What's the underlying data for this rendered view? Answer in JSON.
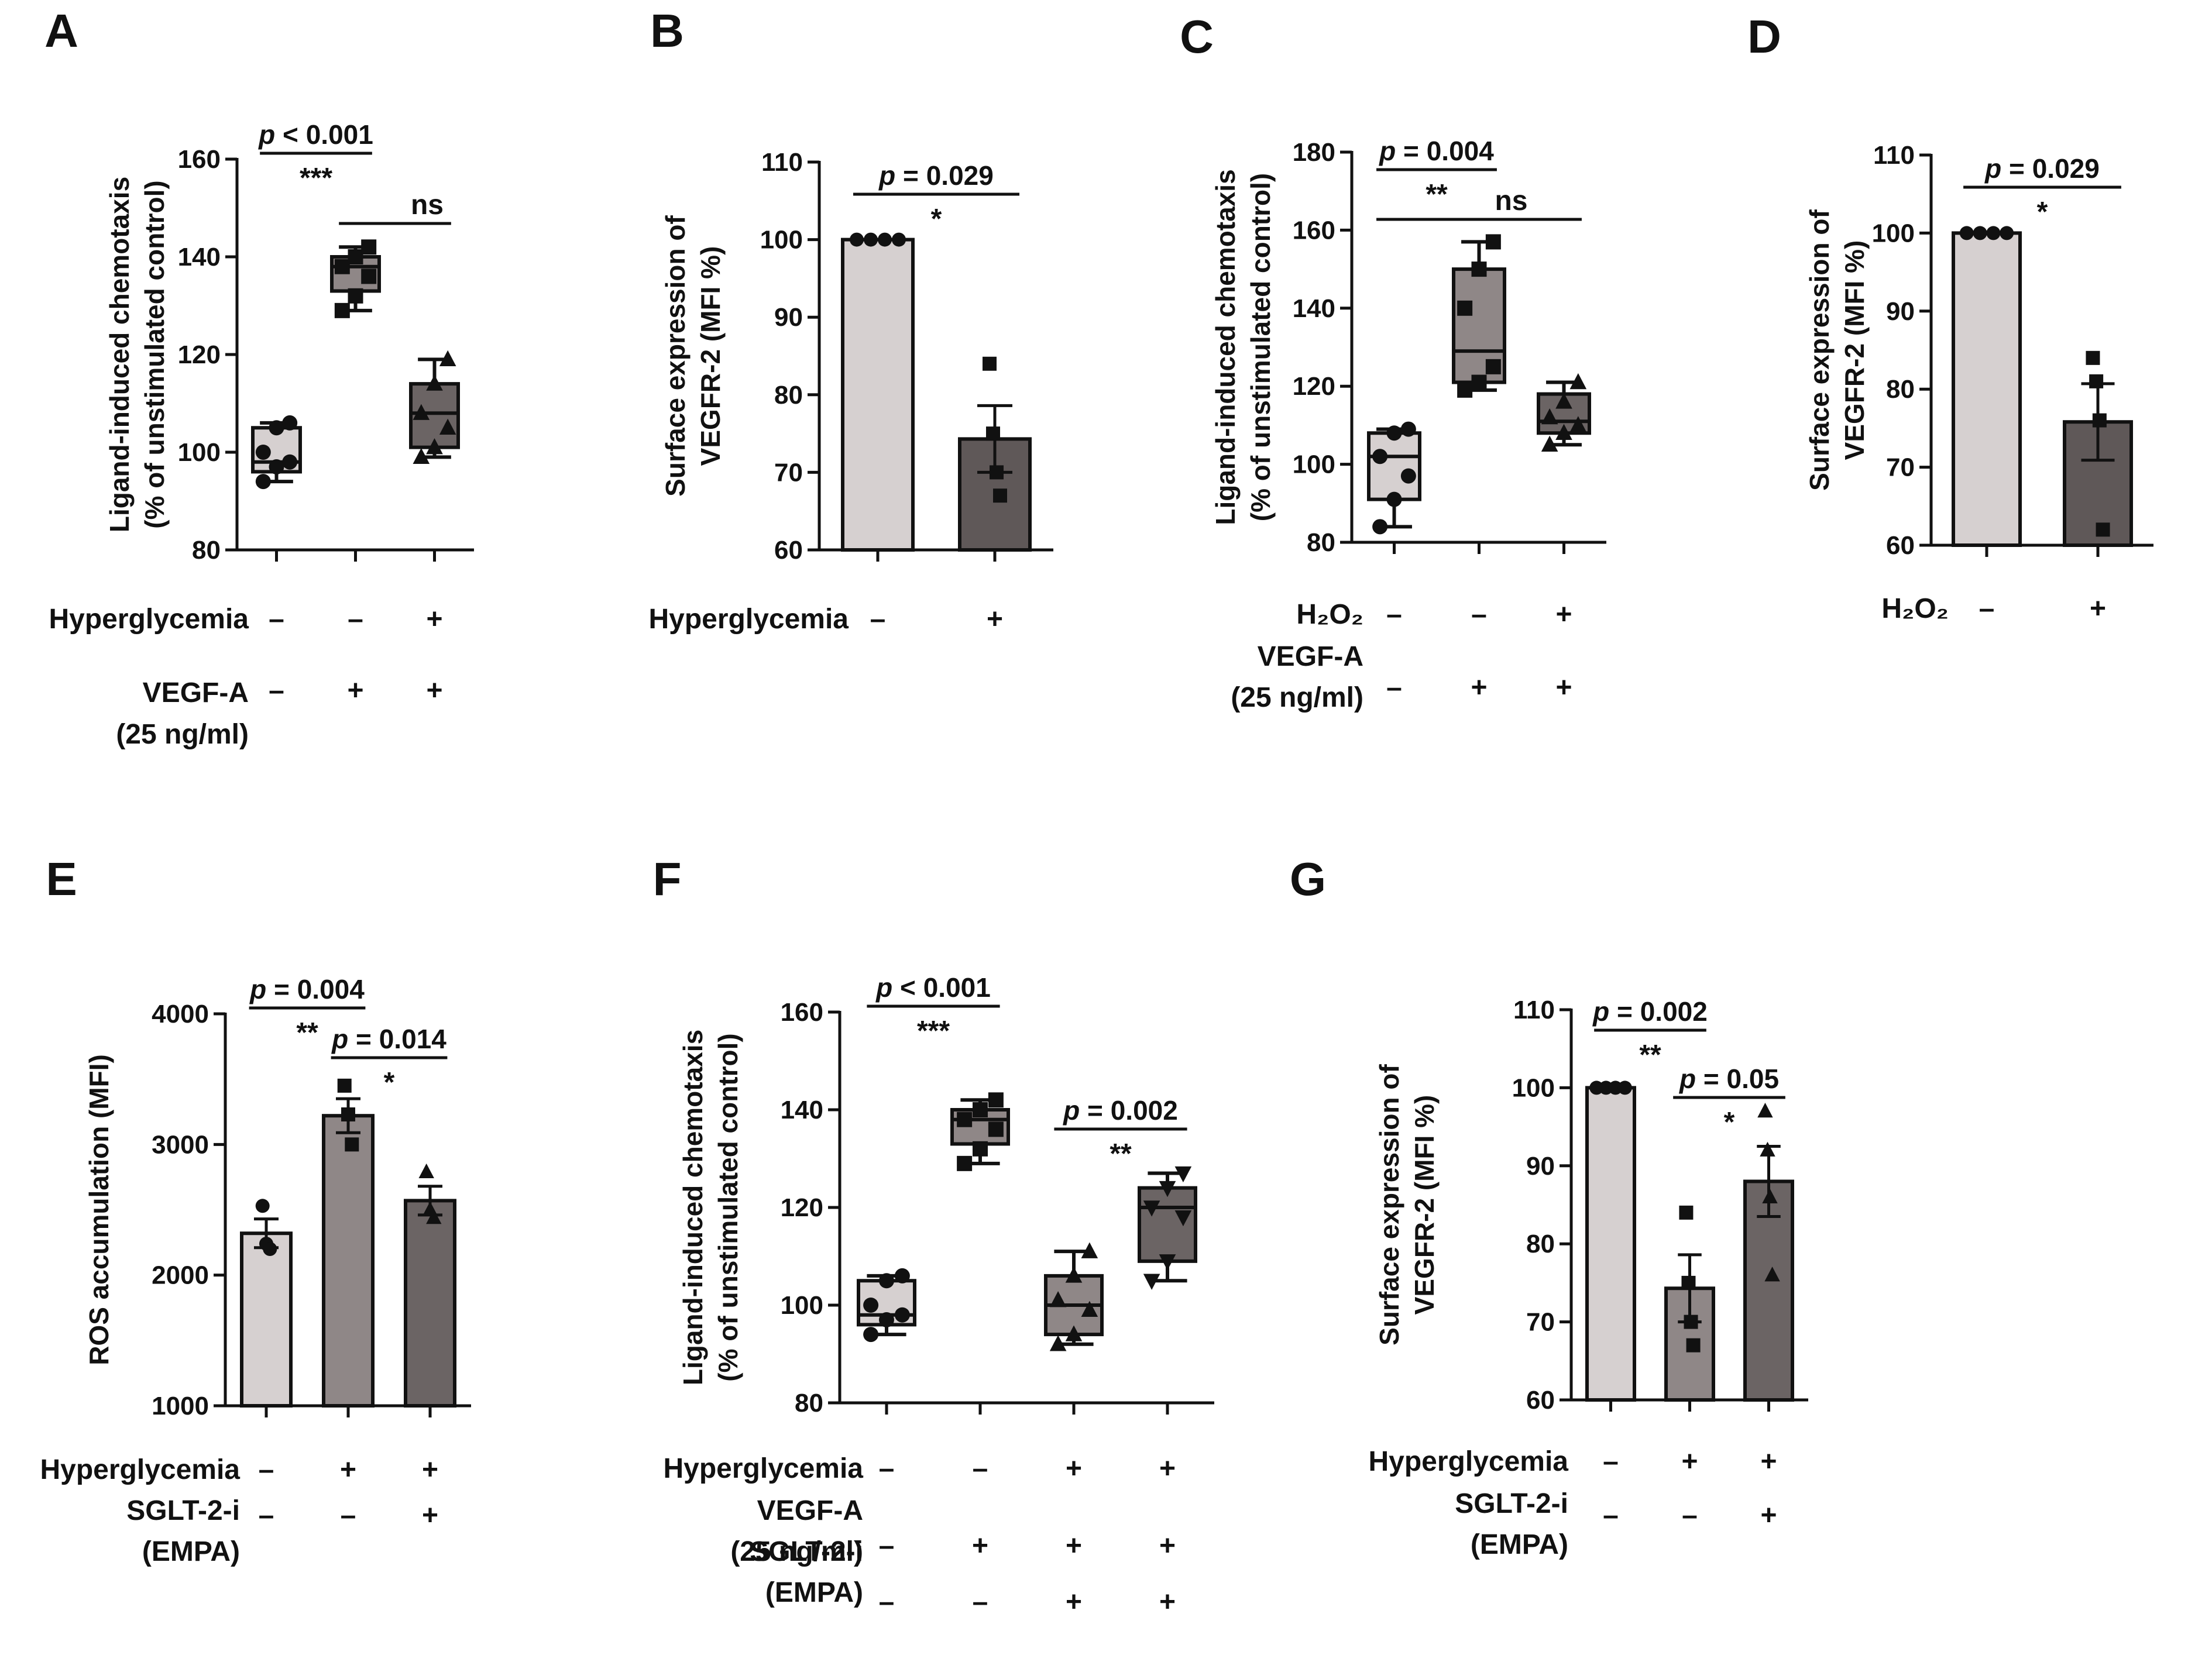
{
  "panels": [
    {
      "label": "A",
      "type": "box",
      "ylabel": [
        "Ligand-induced chemotaxis",
        "(% of unstimulated control)"
      ],
      "yticks": [
        80,
        100,
        120,
        140,
        160
      ],
      "ylim": [
        80,
        160
      ],
      "boxes": [
        {
          "fill": "#d6d0d0",
          "min": 94,
          "q1": 96,
          "median": 98,
          "q3": 105,
          "max": 106,
          "marker": "circle",
          "points": [
            94,
            97,
            98,
            100,
            105,
            106
          ]
        },
        {
          "fill": "#8f8787",
          "min": 129,
          "q1": 133,
          "median": 138,
          "q3": 140,
          "max": 142,
          "marker": "square",
          "points": [
            129,
            132,
            136,
            138,
            140,
            142
          ]
        },
        {
          "fill": "#6b6464",
          "min": 99,
          "q1": 101,
          "median": 108,
          "q3": 114,
          "max": 119,
          "marker": "triangle",
          "points": [
            99,
            101,
            105,
            108,
            114,
            119
          ]
        }
      ],
      "comparisons": [
        {
          "from": 0,
          "to": 1,
          "p": "p < 0.001",
          "stars": "***"
        },
        {
          "from": 1,
          "to": 2,
          "p": "",
          "stars": "ns"
        }
      ],
      "conditions": [
        {
          "label": [
            "Hyperglycemia"
          ],
          "signs": [
            "–",
            "–",
            "+"
          ]
        },
        {
          "label": [
            "VEGF-A",
            "(25 ng/ml)"
          ],
          "signs": [
            "–",
            "+",
            "+"
          ]
        }
      ]
    },
    {
      "label": "B",
      "type": "bar",
      "ylabel": [
        "Surface expression of",
        "VEGFR-2 (MFI %)"
      ],
      "yticks": [
        60,
        70,
        80,
        90,
        100,
        110
      ],
      "ylim": [
        60,
        110
      ],
      "bars": [
        {
          "fill": "#d6d0d0",
          "mean": 100,
          "sem": 0,
          "marker": "circle",
          "points": [
            100,
            100,
            100,
            100
          ]
        },
        {
          "fill": "#5f5858",
          "mean": 74.3,
          "sem": 4.3,
          "marker": "square",
          "points": [
            84,
            75,
            70,
            67
          ]
        }
      ],
      "comparisons": [
        {
          "from": 0,
          "to": 1,
          "p": "p = 0.029",
          "stars": "*"
        }
      ],
      "conditions": [
        {
          "label": [
            "Hyperglycemia"
          ],
          "signs": [
            "–",
            "+"
          ]
        }
      ]
    },
    {
      "label": "C",
      "type": "box",
      "ylabel": [
        "Ligand-induced chemotaxis",
        "(% of unstimulated control)"
      ],
      "yticks": [
        80,
        100,
        120,
        140,
        160,
        180
      ],
      "ylim": [
        80,
        180
      ],
      "boxes": [
        {
          "fill": "#d6d0d0",
          "min": 84,
          "q1": 91,
          "median": 102,
          "q3": 108,
          "max": 109,
          "marker": "circle",
          "points": [
            84,
            91,
            97,
            102,
            108,
            109
          ]
        },
        {
          "fill": "#8f8787",
          "min": 119,
          "q1": 121,
          "median": 129,
          "q3": 150,
          "max": 157,
          "marker": "square",
          "points": [
            119,
            121,
            125,
            140,
            150,
            157
          ]
        },
        {
          "fill": "#6b6464",
          "min": 105,
          "q1": 108,
          "median": 111,
          "q3": 118,
          "max": 121,
          "marker": "triangle",
          "points": [
            105,
            108,
            110,
            112,
            116,
            121
          ]
        }
      ],
      "comparisons": [
        {
          "from": 0,
          "to": 1,
          "p": "p = 0.004",
          "stars": "**"
        },
        {
          "from": 0,
          "to": 2,
          "p": "",
          "stars": "ns"
        }
      ],
      "conditions": [
        {
          "label": [
            "H₂O₂"
          ],
          "signs": [
            "–",
            "–",
            "+"
          ]
        },
        {
          "label": [
            "VEGF-A",
            "(25 ng/ml)"
          ],
          "signs": [
            "–",
            "+",
            "+"
          ]
        }
      ]
    },
    {
      "label": "D",
      "type": "bar",
      "ylabel": [
        "Surface expression of",
        "VEGFR-2 (MFI %)"
      ],
      "yticks": [
        60,
        70,
        80,
        90,
        100,
        110
      ],
      "ylim": [
        60,
        110
      ],
      "bars": [
        {
          "fill": "#d6d0d0",
          "mean": 100,
          "sem": 0,
          "marker": "circle",
          "points": [
            100,
            100,
            100,
            100
          ]
        },
        {
          "fill": "#5f5858",
          "mean": 75.8,
          "sem": 4.9,
          "marker": "square",
          "points": [
            84,
            81,
            76,
            62
          ]
        }
      ],
      "comparisons": [
        {
          "from": 0,
          "to": 1,
          "p": "p = 0.029",
          "stars": "*"
        }
      ],
      "conditions": [
        {
          "label": [
            "H₂O₂"
          ],
          "signs": [
            "–",
            "+"
          ]
        }
      ]
    },
    {
      "label": "E",
      "type": "bar",
      "ylabel": [
        "ROS accumulation (MFI)"
      ],
      "yticks": [
        1000,
        2000,
        3000,
        4000
      ],
      "ylim": [
        1000,
        4000
      ],
      "bars": [
        {
          "fill": "#d6d0d0",
          "mean": 2320,
          "sem": 110,
          "marker": "circle",
          "points": [
            2530,
            2240,
            2200
          ]
        },
        {
          "fill": "#8f8787",
          "mean": 3220,
          "sem": 130,
          "marker": "square",
          "points": [
            3450,
            3230,
            3000
          ]
        },
        {
          "fill": "#6b6464",
          "mean": 2570,
          "sem": 110,
          "marker": "triangle",
          "points": [
            2790,
            2500,
            2440
          ]
        }
      ],
      "comparisons": [
        {
          "from": 0,
          "to": 1,
          "p": "p = 0.004",
          "stars": "**"
        },
        {
          "from": 1,
          "to": 2,
          "p": "p = 0.014",
          "stars": "*"
        }
      ],
      "conditions": [
        {
          "label": [
            "Hyperglycemia"
          ],
          "signs": [
            "–",
            "+",
            "+"
          ]
        },
        {
          "label": [
            "SGLT-2-i",
            "(EMPA)"
          ],
          "signs": [
            "–",
            "–",
            "+"
          ]
        }
      ]
    },
    {
      "label": "F",
      "type": "box",
      "ylabel": [
        "Ligand-induced chemotaxis",
        "(% of unstimulated control)"
      ],
      "yticks": [
        80,
        100,
        120,
        140,
        160
      ],
      "ylim": [
        80,
        160
      ],
      "boxes": [
        {
          "fill": "#d6d0d0",
          "min": 94,
          "q1": 96,
          "median": 98,
          "q3": 105,
          "max": 106,
          "marker": "circle",
          "points": [
            94,
            97,
            98,
            100,
            105,
            106
          ]
        },
        {
          "fill": "#8f8787",
          "min": 129,
          "q1": 133,
          "median": 138,
          "q3": 140,
          "max": 142,
          "marker": "square",
          "points": [
            129,
            132,
            136,
            138,
            140,
            142
          ]
        },
        {
          "fill": "#8f8787",
          "min": 92,
          "q1": 94,
          "median": 100,
          "q3": 106,
          "max": 111,
          "marker": "triangle",
          "points": [
            92,
            94,
            99,
            101,
            106,
            111
          ]
        },
        {
          "fill": "#6b6464",
          "min": 105,
          "q1": 109,
          "median": 120,
          "q3": 124,
          "max": 127,
          "marker": "triangle-down",
          "points": [
            105,
            109,
            118,
            120,
            124,
            127
          ]
        }
      ],
      "comparisons": [
        {
          "from": 0,
          "to": 1,
          "p": "p < 0.001",
          "stars": "***"
        },
        {
          "from": 2,
          "to": 3,
          "p": "p = 0.002",
          "stars": "**"
        }
      ],
      "conditions": [
        {
          "label": [
            "Hyperglycemia"
          ],
          "signs": [
            "–",
            "–",
            "+",
            "+"
          ]
        },
        {
          "label": [
            "VEGF-A",
            "(25 ng/ml)"
          ],
          "signs": [
            "–",
            "+",
            "+",
            "+"
          ]
        },
        {
          "label": [
            "SGLT-2-i",
            "(EMPA)"
          ],
          "signs": [
            "–",
            "–",
            "+",
            "+"
          ]
        }
      ]
    },
    {
      "label": "G",
      "type": "bar",
      "ylabel": [
        "Surface expression of",
        "VEGFR-2 (MFI %)"
      ],
      "yticks": [
        60,
        70,
        80,
        90,
        100,
        110
      ],
      "ylim": [
        60,
        110
      ],
      "bars": [
        {
          "fill": "#d6d0d0",
          "mean": 100,
          "sem": 0,
          "marker": "circle",
          "points": [
            100,
            100,
            100,
            100
          ]
        },
        {
          "fill": "#8f8787",
          "mean": 74.3,
          "sem": 4.3,
          "marker": "square",
          "points": [
            84,
            75,
            70,
            67
          ]
        },
        {
          "fill": "#6b6464",
          "mean": 88,
          "sem": 4.5,
          "marker": "triangle",
          "points": [
            97,
            92,
            86,
            76
          ]
        }
      ],
      "comparisons": [
        {
          "from": 0,
          "to": 1,
          "p": "p = 0.002",
          "stars": "**"
        },
        {
          "from": 1,
          "to": 2,
          "p": "p = 0.05",
          "stars": "*"
        }
      ],
      "conditions": [
        {
          "label": [
            "Hyperglycemia"
          ],
          "signs": [
            "–",
            "+",
            "+"
          ]
        },
        {
          "label": [
            "SGLT-2-i",
            "(EMPA)"
          ],
          "signs": [
            "–",
            "–",
            "+"
          ]
        }
      ]
    }
  ]
}
